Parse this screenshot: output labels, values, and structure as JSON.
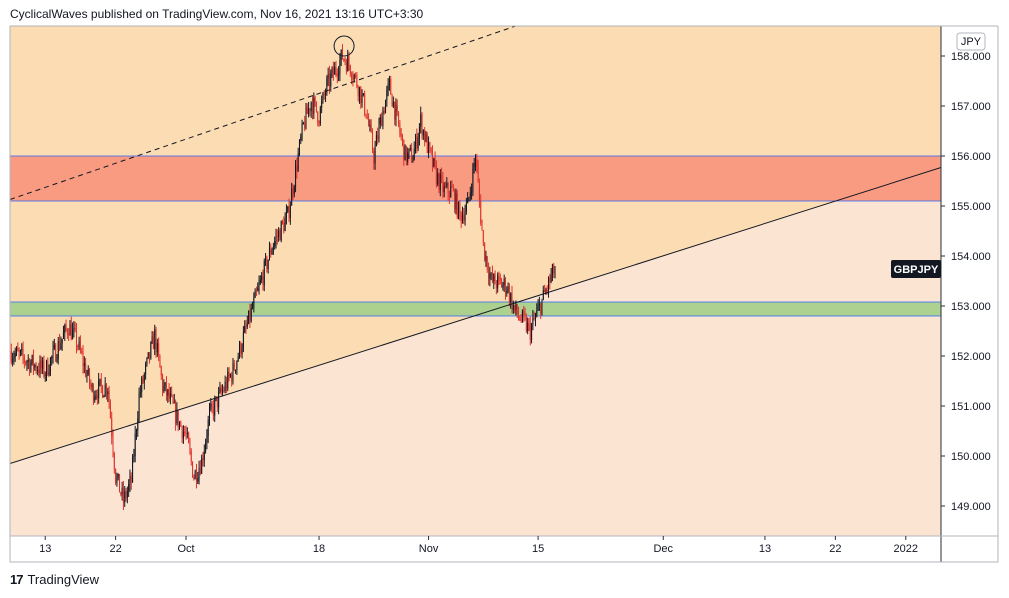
{
  "header": {
    "text": "CyclicalWaves published on TradingView.com, Nov 16, 2021 13:16 UTC+3:30"
  },
  "footer": {
    "logo_glyph": "17",
    "brand": "TradingView"
  },
  "chart_data": {
    "type": "candlestick",
    "symbol_label": "GBPJPY",
    "currency_label": "JPY",
    "y_ticks": [
      "158.000",
      "157.000",
      "156.000",
      "155.000",
      "154.000",
      "153.000",
      "152.000",
      "151.000",
      "150.000",
      "149.000"
    ],
    "y_tick_values": [
      158,
      157,
      156,
      155,
      154,
      153,
      152,
      151,
      150,
      149
    ],
    "ylim": [
      148.4,
      158.6
    ],
    "x_ticks": [
      {
        "label": "13",
        "day": 0
      },
      {
        "label": "22",
        "day": 9
      },
      {
        "label": "Oct",
        "day": 18
      },
      {
        "label": "18",
        "day": 35
      },
      {
        "label": "Nov",
        "day": 49
      },
      {
        "label": "15",
        "day": 63
      },
      {
        "label": "Dec",
        "day": 79
      },
      {
        "label": "13",
        "day": 92
      },
      {
        "label": "22",
        "day": 101
      },
      {
        "label": "2022",
        "day": 110
      }
    ],
    "x_range_days": [
      -4.5,
      114.5
    ],
    "last_price": 153.8,
    "zones": [
      {
        "name": "resistance-zone",
        "from": 155.1,
        "to": 156.0,
        "color": "#f8977d"
      },
      {
        "name": "support-zone",
        "from": 152.8,
        "to": 153.08,
        "color": "#a8d08d"
      }
    ],
    "trendlines": [
      {
        "name": "rising-support-line",
        "style": "solid",
        "points": [
          [
            -4.5,
            149.85
          ],
          [
            114.5,
            155.77
          ]
        ]
      },
      {
        "name": "upper-channel-line",
        "style": "dashed",
        "points": [
          [
            -4.5,
            155.13
          ],
          [
            62,
            158.7
          ]
        ]
      }
    ],
    "marker": {
      "name": "top-circle",
      "day": 38.2,
      "price": 158.2
    },
    "background_colors": {
      "upper": "#fbdcb3",
      "lower": "#fbe5d2"
    },
    "candle_colors": {
      "up": "#131722",
      "down": "#e0312c"
    },
    "anchors": [
      [
        -4.5,
        152.1
      ],
      [
        0,
        151.7
      ],
      [
        3,
        152.6
      ],
      [
        4,
        152.3
      ],
      [
        6,
        151.3
      ],
      [
        8,
        151.4
      ],
      [
        9,
        149.6
      ],
      [
        10,
        149.1
      ],
      [
        11,
        149.5
      ],
      [
        12,
        151.2
      ],
      [
        14,
        152.4
      ],
      [
        15,
        151.4
      ],
      [
        16,
        151.1
      ],
      [
        17,
        150.7
      ],
      [
        18,
        150.4
      ],
      [
        19,
        149.6
      ],
      [
        20,
        149.9
      ],
      [
        21,
        150.8
      ],
      [
        24,
        151.7
      ],
      [
        26,
        152.7
      ],
      [
        29,
        154.2
      ],
      [
        31,
        154.8
      ],
      [
        32,
        155.7
      ],
      [
        33,
        156.6
      ],
      [
        34,
        157.1
      ],
      [
        35,
        156.8
      ],
      [
        36,
        157.4
      ],
      [
        38,
        158.0
      ],
      [
        39,
        157.8
      ],
      [
        40,
        157.4
      ],
      [
        41,
        156.9
      ],
      [
        42,
        156.0
      ],
      [
        43,
        156.8
      ],
      [
        44,
        157.4
      ],
      [
        45,
        156.7
      ],
      [
        46,
        156.0
      ],
      [
        47,
        156.0
      ],
      [
        48,
        156.7
      ],
      [
        49,
        156.1
      ],
      [
        50,
        155.6
      ],
      [
        51,
        155.3
      ],
      [
        52,
        155.3
      ],
      [
        53,
        154.8
      ],
      [
        54,
        155.0
      ],
      [
        55,
        156.0
      ],
      [
        56,
        154.2
      ],
      [
        57,
        153.5
      ],
      [
        59,
        153.4
      ],
      [
        60,
        152.9
      ],
      [
        61,
        152.7
      ],
      [
        62,
        152.5
      ],
      [
        63,
        152.9
      ],
      [
        64,
        153.3
      ],
      [
        65,
        153.7
      ]
    ]
  }
}
